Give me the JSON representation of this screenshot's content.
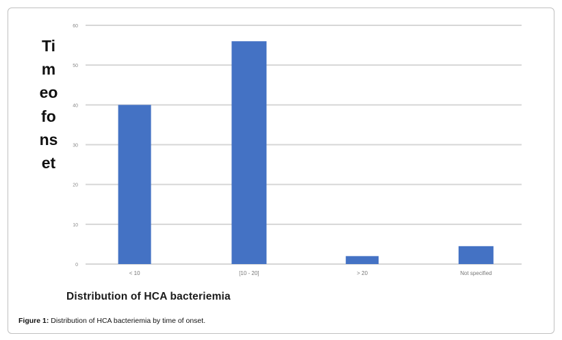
{
  "chart_data": {
    "type": "bar",
    "categories": [
      "< 10",
      "[10 - 20]",
      "> 20",
      "Not specified"
    ],
    "values": [
      40,
      56,
      2,
      4.5
    ],
    "xlabel": "Distribution of HCA bacteriemia",
    "ylabel": "Timeofonset",
    "ylim": [
      0,
      60
    ],
    "yticks": [
      0,
      10,
      20,
      30,
      40,
      50,
      60
    ],
    "grid": true,
    "colors": {
      "bar": "#4472c4",
      "grid": "#d6d6d6"
    }
  },
  "caption": {
    "label": "Figure 1:",
    "text": " Distribution of HCA bacteriemia by time of onset."
  }
}
